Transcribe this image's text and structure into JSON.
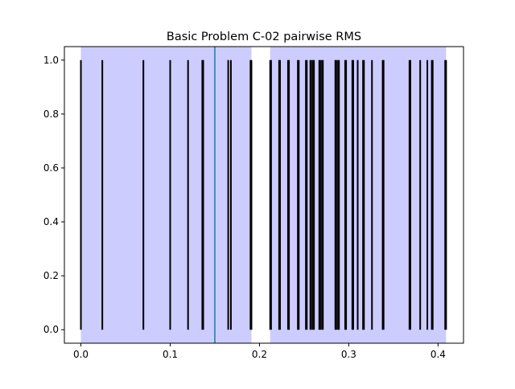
{
  "chart_data": {
    "type": "event-lines",
    "title": "Basic Problem C-02 pairwise RMS",
    "xlabel": "",
    "ylabel": "",
    "xlim": [
      -0.0185,
      0.4285
    ],
    "ylim": [
      -0.05,
      1.05
    ],
    "xticks": [
      0.0,
      0.1,
      0.2,
      0.3,
      0.4
    ],
    "xtick_labels": [
      "0.0",
      "0.1",
      "0.2",
      "0.3",
      "0.4"
    ],
    "yticks": [
      0.0,
      0.2,
      0.4,
      0.6,
      0.8,
      1.0
    ],
    "ytick_labels": [
      "0.0",
      "0.2",
      "0.4",
      "0.6",
      "0.8",
      "1.0"
    ],
    "grid": false,
    "shaded_spans": [
      {
        "x0": 0.0,
        "x1": 0.191,
        "color": "#ccccff"
      },
      {
        "x0": 0.212,
        "x1": 0.409,
        "color": "#ccccff"
      }
    ],
    "threshold_line": {
      "x": 0.15,
      "color": "#1f77b4"
    },
    "event_color": "#000000",
    "events": [
      0.0,
      0.024,
      0.07,
      0.1,
      0.12,
      0.136,
      0.137,
      0.165,
      0.168,
      0.19,
      0.191,
      0.212,
      0.213,
      0.222,
      0.223,
      0.232,
      0.233,
      0.243,
      0.244,
      0.252,
      0.253,
      0.257,
      0.258,
      0.26,
      0.261,
      0.267,
      0.268,
      0.27,
      0.271,
      0.285,
      0.286,
      0.288,
      0.289,
      0.296,
      0.297,
      0.304,
      0.305,
      0.31,
      0.316,
      0.317,
      0.326,
      0.338,
      0.339,
      0.368,
      0.369,
      0.38,
      0.388,
      0.393,
      0.394,
      0.408,
      0.409
    ]
  }
}
